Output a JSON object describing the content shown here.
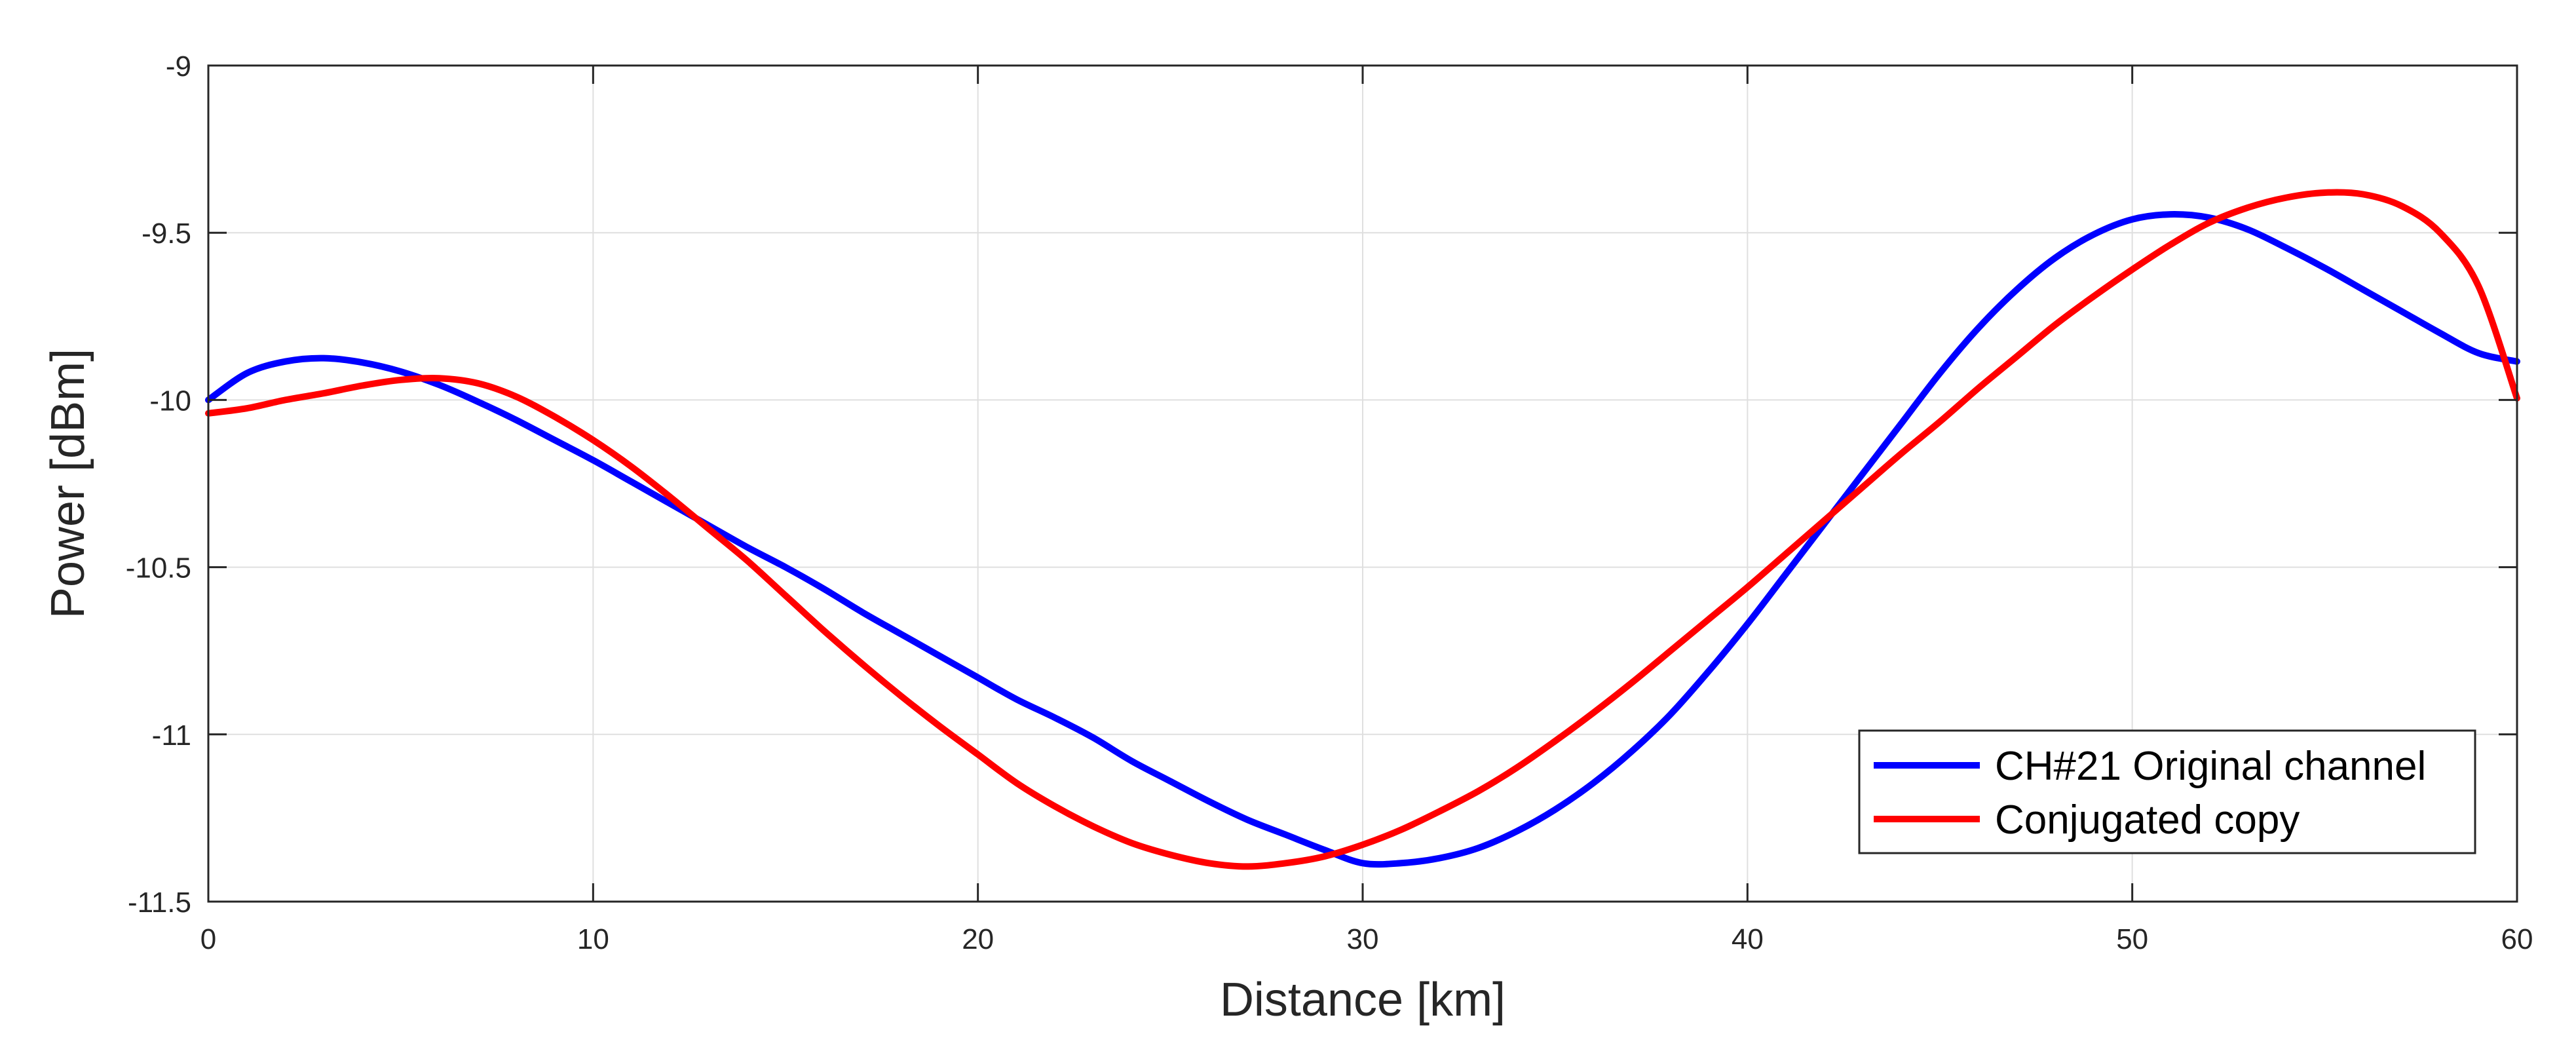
{
  "chart_data": {
    "type": "line",
    "title": "",
    "xlabel": "Distance [km]",
    "ylabel": "Power [dBm]",
    "xlim": [
      0,
      60
    ],
    "ylim": [
      -11.5,
      -9
    ],
    "xticks": [
      0,
      10,
      20,
      30,
      40,
      50,
      60
    ],
    "xtick_labels": [
      "0",
      "10",
      "20",
      "30",
      "40",
      "50",
      "60"
    ],
    "yticks": [
      -11.5,
      -11,
      -10.5,
      -10,
      -9.5,
      -9
    ],
    "ytick_labels": [
      "-11.5",
      "-11",
      "-10.5",
      "-10",
      "-9.5",
      "-9"
    ],
    "grid": true,
    "legend_position": "bottom-right",
    "series": [
      {
        "name": "CH#21 Original channel",
        "color": "#0000ff",
        "x": [
          0,
          1,
          2,
          3,
          4,
          5,
          6,
          7,
          8,
          9,
          10,
          11,
          12,
          13,
          14,
          15,
          16,
          17,
          18,
          19,
          20,
          21,
          22,
          23,
          24,
          25,
          26,
          27,
          28,
          29,
          30,
          31,
          32,
          33,
          34,
          35,
          36,
          37,
          38,
          39,
          40,
          41,
          42,
          43,
          44,
          45,
          46,
          47,
          48,
          49,
          50,
          51,
          52,
          53,
          54,
          55,
          56,
          57,
          58,
          59,
          60
        ],
        "y": [
          -10.0,
          -9.92,
          -9.885,
          -9.875,
          -9.888,
          -9.915,
          -9.955,
          -10.005,
          -10.06,
          -10.12,
          -10.18,
          -10.245,
          -10.31,
          -10.375,
          -10.44,
          -10.5,
          -10.565,
          -10.635,
          -10.7,
          -10.765,
          -10.83,
          -10.895,
          -10.95,
          -11.01,
          -11.08,
          -11.14,
          -11.2,
          -11.255,
          -11.3,
          -11.345,
          -11.385,
          -11.385,
          -11.37,
          -11.34,
          -11.29,
          -11.225,
          -11.145,
          -11.05,
          -10.94,
          -10.81,
          -10.67,
          -10.52,
          -10.37,
          -10.22,
          -10.07,
          -9.92,
          -9.785,
          -9.67,
          -9.575,
          -9.505,
          -9.46,
          -9.445,
          -9.455,
          -9.49,
          -9.545,
          -9.605,
          -9.67,
          -9.735,
          -9.8,
          -9.86,
          -9.885
        ]
      },
      {
        "name": "Conjugated copy",
        "color": "#ff0000",
        "x": [
          0,
          1,
          2,
          3,
          4,
          5,
          6,
          7,
          8,
          9,
          10,
          11,
          12,
          13,
          14,
          15,
          16,
          17,
          18,
          19,
          20,
          21,
          22,
          23,
          24,
          25,
          26,
          27,
          28,
          29,
          30,
          31,
          32,
          33,
          34,
          35,
          36,
          37,
          38,
          39,
          40,
          41,
          42,
          43,
          44,
          45,
          46,
          47,
          48,
          49,
          50,
          51,
          52,
          53,
          54,
          55,
          56,
          57,
          58,
          59,
          60
        ],
        "y": [
          -10.04,
          -10.025,
          -10.0,
          -9.98,
          -9.957,
          -9.94,
          -9.935,
          -9.95,
          -9.99,
          -10.05,
          -10.12,
          -10.2,
          -10.29,
          -10.385,
          -10.48,
          -10.585,
          -10.69,
          -10.79,
          -10.885,
          -10.975,
          -11.06,
          -11.145,
          -11.215,
          -11.275,
          -11.325,
          -11.36,
          -11.385,
          -11.395,
          -11.385,
          -11.365,
          -11.33,
          -11.285,
          -11.23,
          -11.17,
          -11.1,
          -11.02,
          -10.935,
          -10.845,
          -10.75,
          -10.655,
          -10.56,
          -10.46,
          -10.36,
          -10.26,
          -10.16,
          -10.065,
          -9.965,
          -9.87,
          -9.775,
          -9.69,
          -9.61,
          -9.535,
          -9.47,
          -9.425,
          -9.395,
          -9.38,
          -9.385,
          -9.42,
          -9.5,
          -9.66,
          -9.995
        ]
      }
    ]
  }
}
